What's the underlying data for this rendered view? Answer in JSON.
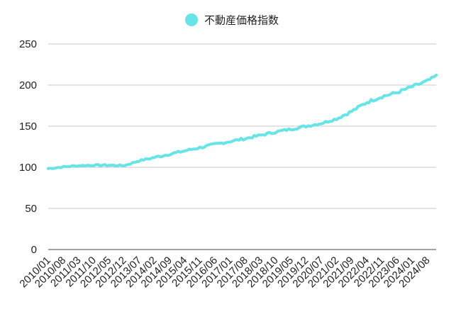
{
  "chart_data": {
    "type": "line",
    "legend": {
      "position": "top",
      "label": "不動産価格指数"
    },
    "series": [
      {
        "name": "不動産価格指数",
        "color": "#67E5E6",
        "start_month": "2010/01",
        "anchors": [
          [
            "2010/01",
            98.5
          ],
          [
            "2010/08",
            100.5
          ],
          [
            "2011/03",
            102.0
          ],
          [
            "2011/10",
            102.5
          ],
          [
            "2012/05",
            102.5
          ],
          [
            "2012/12",
            102.0
          ],
          [
            "2013/07",
            108.0
          ],
          [
            "2014/02",
            112.0
          ],
          [
            "2014/09",
            116.0
          ],
          [
            "2015/04",
            120.0
          ],
          [
            "2015/11",
            124.0
          ],
          [
            "2016/06",
            128.0
          ],
          [
            "2016/12",
            131.0
          ],
          [
            "2017/08",
            135.0
          ],
          [
            "2018/03",
            139.0
          ],
          [
            "2018/10",
            143.0
          ],
          [
            "2019/05",
            146.5
          ],
          [
            "2019/12",
            150.0
          ],
          [
            "2020/07",
            153.5
          ],
          [
            "2021/02",
            159.0
          ],
          [
            "2021/09",
            168.0
          ],
          [
            "2022/04",
            179.0
          ],
          [
            "2022/11",
            186.0
          ],
          [
            "2023/06",
            191.0
          ],
          [
            "2024/01",
            198.0
          ],
          [
            "2024/08",
            205.0
          ],
          [
            "2024/12",
            211.0
          ]
        ]
      }
    ],
    "x_tick_labels": [
      "2010/01",
      "2010/08",
      "2011/03",
      "2011/10",
      "2012/05",
      "2012/12",
      "2013/07",
      "2014/02",
      "2014/09",
      "2015/04",
      "2015/11",
      "2016/06",
      "2017/01",
      "2017/08",
      "2018/03",
      "2018/10",
      "2019/05",
      "2019/12",
      "2020/07",
      "2021/02",
      "2021/09",
      "2022/04",
      "2022/11",
      "2023/06",
      "2024/01",
      "2024/08"
    ],
    "y_ticks": [
      0,
      50,
      100,
      150,
      200,
      250
    ],
    "ylim": [
      0,
      250
    ],
    "grid": true
  }
}
